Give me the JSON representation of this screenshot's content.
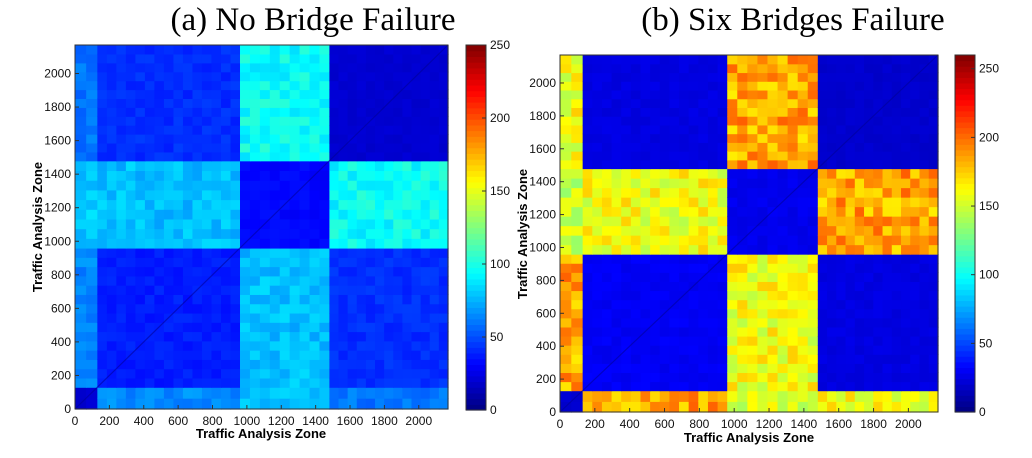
{
  "chart_data": [
    {
      "type": "heatmap",
      "title": "(a) No Bridge Failure",
      "xlabel": "Traffic Analysis Zone",
      "ylabel": "Traffic Analysis Zone",
      "xlim": [
        0,
        2170
      ],
      "ylim": [
        0,
        2170
      ],
      "xticks": [
        0,
        200,
        400,
        600,
        800,
        1000,
        1200,
        1400,
        1600,
        1800,
        2000
      ],
      "yticks": [
        0,
        200,
        400,
        600,
        800,
        1000,
        1200,
        1400,
        1600,
        1800,
        2000
      ],
      "colorbar": {
        "range": [
          0,
          250
        ],
        "ticks": [
          0,
          50,
          100,
          150,
          200,
          250
        ],
        "colormap": "jet"
      },
      "zone_boundaries": [
        0,
        130,
        960,
        1480,
        2170
      ],
      "block_values": [
        [
          20,
          65,
          80,
          60
        ],
        [
          65,
          38,
          78,
          42
        ],
        [
          80,
          78,
          32,
          95
        ],
        [
          60,
          42,
          95,
          20
        ]
      ]
    },
    {
      "type": "heatmap",
      "title": "(b) Six Bridges Failure",
      "xlabel": "Traffic Analysis Zone",
      "ylabel": "Traffic Analysis Zone",
      "xlim": [
        0,
        2170
      ],
      "ylim": [
        0,
        2170
      ],
      "xticks": [
        0,
        200,
        400,
        600,
        800,
        1000,
        1200,
        1400,
        1600,
        1800,
        2000
      ],
      "yticks": [
        0,
        200,
        400,
        600,
        800,
        1000,
        1200,
        1400,
        1600,
        1800,
        2000
      ],
      "colorbar": {
        "range": [
          0,
          260
        ],
        "ticks": [
          0,
          50,
          100,
          150,
          200,
          250
        ],
        "colormap": "jet"
      },
      "zone_boundaries": [
        0,
        130,
        960,
        1480,
        2170
      ],
      "block_values": [
        [
          20,
          185,
          150,
          160
        ],
        [
          185,
          30,
          160,
          25
        ],
        [
          150,
          160,
          28,
          185
        ],
        [
          160,
          25,
          185,
          20
        ]
      ]
    }
  ]
}
